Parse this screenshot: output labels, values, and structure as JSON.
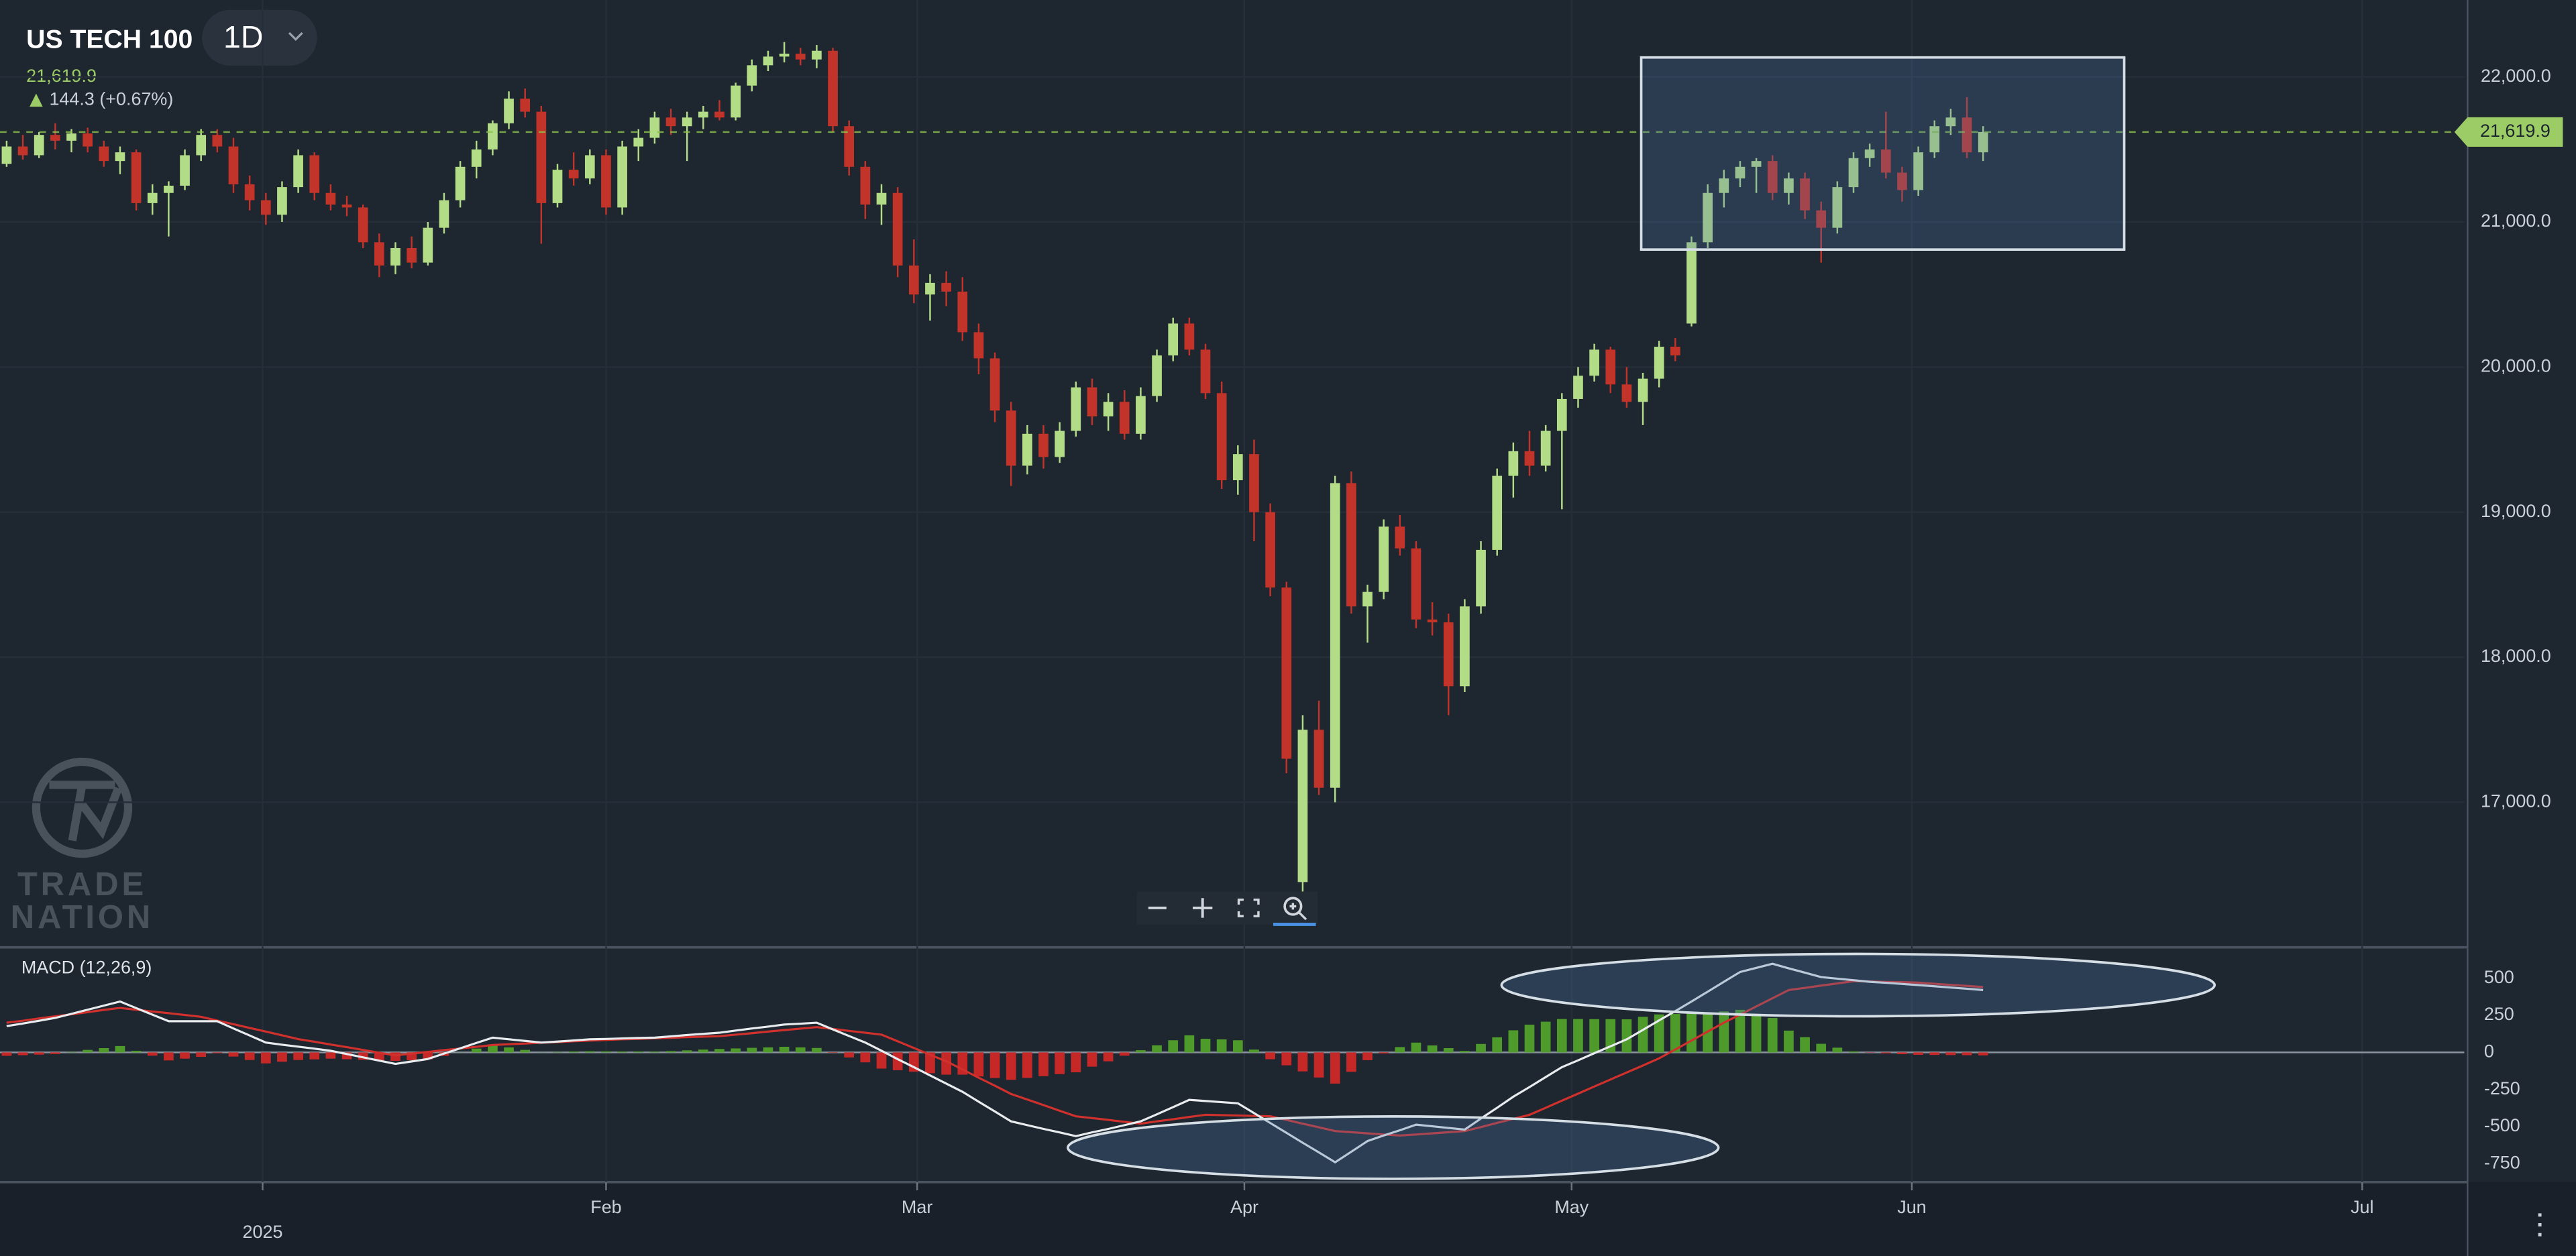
{
  "header": {
    "symbol": "US TECH 100",
    "interval": "1D",
    "change": "144.3 (+0.67%)"
  },
  "watermark": [
    "TRADE",
    "NATION"
  ],
  "chart_data": {
    "type": "candlestick",
    "last_price": {
      "value": 21619.9,
      "label": "21,619.9"
    },
    "up_color": "#b3dc86",
    "down_color": "#c2332a",
    "xlim": [
      -0.41,
      151.7
    ],
    "xticks": [
      {
        "value": 15.8,
        "label": "2025"
      },
      {
        "value": 37,
        "label": "Feb"
      },
      {
        "value": 56.2,
        "label": "Mar"
      },
      {
        "value": 76.4,
        "label": "Apr"
      },
      {
        "value": 96.6,
        "label": "May"
      },
      {
        "value": 117.6,
        "label": "Jun"
      },
      {
        "value": 145.4,
        "label": "Jul"
      }
    ],
    "ylim": [
      16000,
      22530
    ],
    "yticks": [
      {
        "value": 17000,
        "label": "17,000.0"
      },
      {
        "value": 18000,
        "label": "18,000.0"
      },
      {
        "value": 19000,
        "label": "19,000.0"
      },
      {
        "value": 20000,
        "label": "20,000.0"
      },
      {
        "value": 21000,
        "label": "21,000.0"
      },
      {
        "value": 22000,
        "label": "22,000.0"
      }
    ],
    "ohlc": [
      [
        21400,
        21560,
        21380,
        21520
      ],
      [
        21520,
        21600,
        21430,
        21460
      ],
      [
        21460,
        21620,
        21440,
        21600
      ],
      [
        21600,
        21680,
        21500,
        21560
      ],
      [
        21560,
        21640,
        21480,
        21610
      ],
      [
        21610,
        21650,
        21480,
        21520
      ],
      [
        21520,
        21560,
        21380,
        21420
      ],
      [
        21420,
        21520,
        21330,
        21480
      ],
      [
        21480,
        21500,
        21080,
        21130
      ],
      [
        21130,
        21260,
        21050,
        21200
      ],
      [
        21200,
        21280,
        20900,
        21250
      ],
      [
        21250,
        21500,
        21220,
        21460
      ],
      [
        21460,
        21640,
        21420,
        21600
      ],
      [
        21600,
        21640,
        21480,
        21520
      ],
      [
        21520,
        21580,
        21200,
        21260
      ],
      [
        21260,
        21320,
        21080,
        21150
      ],
      [
        21150,
        21200,
        20980,
        21050
      ],
      [
        21050,
        21280,
        21000,
        21240
      ],
      [
        21240,
        21500,
        21200,
        21460
      ],
      [
        21460,
        21480,
        21150,
        21200
      ],
      [
        21200,
        21260,
        21080,
        21120
      ],
      [
        21120,
        21180,
        21040,
        21100
      ],
      [
        21100,
        21120,
        20820,
        20860
      ],
      [
        20860,
        20920,
        20620,
        20700
      ],
      [
        20700,
        20860,
        20640,
        20820
      ],
      [
        20820,
        20900,
        20680,
        20720
      ],
      [
        20720,
        21000,
        20700,
        20960
      ],
      [
        20960,
        21200,
        20920,
        21150
      ],
      [
        21150,
        21420,
        21100,
        21380
      ],
      [
        21380,
        21560,
        21300,
        21500
      ],
      [
        21500,
        21700,
        21460,
        21680
      ],
      [
        21680,
        21900,
        21640,
        21850
      ],
      [
        21850,
        21920,
        21720,
        21760
      ],
      [
        21760,
        21800,
        20850,
        21130
      ],
      [
        21130,
        21400,
        21100,
        21360
      ],
      [
        21360,
        21480,
        21250,
        21300
      ],
      [
        21300,
        21500,
        21260,
        21460
      ],
      [
        21460,
        21500,
        21050,
        21100
      ],
      [
        21100,
        21560,
        21050,
        21520
      ],
      [
        21520,
        21640,
        21420,
        21580
      ],
      [
        21580,
        21760,
        21540,
        21720
      ],
      [
        21720,
        21780,
        21600,
        21660
      ],
      [
        21660,
        21760,
        21420,
        21720
      ],
      [
        21720,
        21800,
        21640,
        21760
      ],
      [
        21760,
        21840,
        21700,
        21720
      ],
      [
        21720,
        21960,
        21700,
        21940
      ],
      [
        21940,
        22120,
        21900,
        22080
      ],
      [
        22080,
        22180,
        22040,
        22140
      ],
      [
        22140,
        22240,
        22100,
        22160
      ],
      [
        22160,
        22200,
        22080,
        22120
      ],
      [
        22120,
        22220,
        22060,
        22180
      ],
      [
        22180,
        22200,
        21620,
        21660
      ],
      [
        21660,
        21700,
        21320,
        21380
      ],
      [
        21380,
        21420,
        21020,
        21120
      ],
      [
        21120,
        21260,
        20980,
        21200
      ],
      [
        21200,
        21240,
        20620,
        20700
      ],
      [
        20700,
        20880,
        20440,
        20500
      ],
      [
        20500,
        20640,
        20320,
        20580
      ],
      [
        20580,
        20660,
        20420,
        20520
      ],
      [
        20520,
        20620,
        20180,
        20240
      ],
      [
        20240,
        20300,
        19950,
        20060
      ],
      [
        20060,
        20100,
        19620,
        19700
      ],
      [
        19700,
        19760,
        19180,
        19320
      ],
      [
        19320,
        19600,
        19260,
        19540
      ],
      [
        19540,
        19600,
        19300,
        19380
      ],
      [
        19380,
        19620,
        19340,
        19560
      ],
      [
        19560,
        19900,
        19520,
        19860
      ],
      [
        19860,
        19920,
        19600,
        19660
      ],
      [
        19660,
        19820,
        19560,
        19760
      ],
      [
        19760,
        19840,
        19500,
        19540
      ],
      [
        19540,
        19860,
        19500,
        19800
      ],
      [
        19800,
        20120,
        19760,
        20080
      ],
      [
        20080,
        20340,
        20040,
        20300
      ],
      [
        20300,
        20340,
        20080,
        20120
      ],
      [
        20120,
        20160,
        19780,
        19820
      ],
      [
        19820,
        19900,
        19160,
        19220
      ],
      [
        19220,
        19460,
        19120,
        19400
      ],
      [
        19400,
        19500,
        18800,
        19000
      ],
      [
        19000,
        19060,
        18420,
        18480
      ],
      [
        18480,
        18520,
        17200,
        17300
      ],
      [
        16450,
        17600,
        16350,
        17500
      ],
      [
        17500,
        17700,
        17050,
        17100
      ],
      [
        17100,
        19250,
        17000,
        19200
      ],
      [
        19200,
        19280,
        18300,
        18350
      ],
      [
        18350,
        18500,
        18100,
        18450
      ],
      [
        18450,
        18950,
        18400,
        18900
      ],
      [
        18900,
        18980,
        18700,
        18750
      ],
      [
        18750,
        18800,
        18200,
        18260
      ],
      [
        18260,
        18380,
        18150,
        18240
      ],
      [
        18240,
        18300,
        17600,
        17800
      ],
      [
        17800,
        18400,
        17760,
        18350
      ],
      [
        18350,
        18800,
        18300,
        18740
      ],
      [
        18740,
        19300,
        18700,
        19250
      ],
      [
        19250,
        19480,
        19100,
        19420
      ],
      [
        19420,
        19560,
        19250,
        19320
      ],
      [
        19320,
        19600,
        19280,
        19560
      ],
      [
        19560,
        19820,
        19020,
        19780
      ],
      [
        19780,
        20000,
        19720,
        19940
      ],
      [
        19940,
        20160,
        19900,
        20120
      ],
      [
        20120,
        20140,
        19820,
        19880
      ],
      [
        19880,
        20000,
        19720,
        19760
      ],
      [
        19760,
        19960,
        19600,
        19920
      ],
      [
        19920,
        20180,
        19860,
        20140
      ],
      [
        20140,
        20200,
        20040,
        20080
      ],
      [
        20300,
        20900,
        20280,
        20860
      ],
      [
        20860,
        21260,
        20820,
        21200
      ],
      [
        21200,
        21360,
        21100,
        21300
      ],
      [
        21300,
        21420,
        21240,
        21380
      ],
      [
        21380,
        21440,
        21200,
        21420
      ],
      [
        21420,
        21460,
        21150,
        21200
      ],
      [
        21200,
        21340,
        21120,
        21300
      ],
      [
        21300,
        21340,
        21020,
        21080
      ],
      [
        21080,
        21140,
        20720,
        20960
      ],
      [
        20960,
        21280,
        20920,
        21240
      ],
      [
        21240,
        21480,
        21200,
        21440
      ],
      [
        21440,
        21540,
        21380,
        21500
      ],
      [
        21500,
        21760,
        21300,
        21340
      ],
      [
        21340,
        21380,
        21140,
        21220
      ],
      [
        21220,
        21520,
        21180,
        21480
      ],
      [
        21480,
        21700,
        21440,
        21660
      ],
      [
        21660,
        21780,
        21600,
        21720
      ],
      [
        21720,
        21860,
        21440,
        21480
      ],
      [
        21480,
        21660,
        21420,
        21619.9
      ]
    ],
    "macd": {
      "title": "MACD (12,26,9)",
      "ylim": [
        -874,
        697
      ],
      "yticks": [
        -750,
        -500,
        -250,
        0,
        250,
        500
      ],
      "macd_color": "#e8ecef",
      "signal_color": "#d0312d",
      "hist_up_color": "#4e9a2a",
      "hist_down_color": "#c62828",
      "macd": [
        177,
        195,
        214,
        232,
        260,
        288,
        315,
        343,
        299,
        254,
        210,
        210,
        210,
        210,
        162,
        114,
        66,
        52,
        39,
        25,
        11,
        -11,
        -33,
        -55,
        -77,
        -61,
        -44,
        -8,
        28,
        64,
        100,
        89,
        77,
        66,
        73,
        81,
        88,
        91,
        94,
        97,
        100,
        108,
        117,
        125,
        133,
        147,
        161,
        174,
        188,
        194,
        200,
        155,
        111,
        66,
        11,
        -45,
        -100,
        -155,
        -210,
        -265,
        -332,
        -398,
        -465,
        -490,
        -515,
        -539,
        -564,
        -539,
        -515,
        -490,
        -465,
        -417,
        -368,
        -320,
        -328,
        -335,
        -343,
        -409,
        -476,
        -542,
        -608,
        -674,
        -740,
        -669,
        -597,
        -560,
        -524,
        -487,
        -498,
        -509,
        -520,
        -446,
        -373,
        -299,
        -233,
        -166,
        -100,
        -53,
        -6,
        41,
        88,
        152,
        216,
        279,
        343,
        409,
        476,
        542,
        570,
        597,
        567,
        538,
        508,
        497,
        487,
        476,
        469,
        461,
        454,
        446,
        437,
        429,
        420
      ],
      "signal": [
        200,
        214,
        229,
        243,
        257,
        271,
        286,
        300,
        288,
        276,
        264,
        252,
        240,
        215,
        190,
        165,
        140,
        115,
        90,
        72,
        53,
        35,
        17,
        -2,
        -20,
        -8,
        3,
        15,
        27,
        38,
        50,
        55,
        60,
        65,
        70,
        75,
        80,
        84,
        88,
        91,
        95,
        99,
        103,
        106,
        110,
        120,
        130,
        140,
        150,
        160,
        170,
        158,
        145,
        133,
        120,
        75,
        30,
        -15,
        -60,
        -115,
        -170,
        -225,
        -280,
        -318,
        -355,
        -393,
        -430,
        -443,
        -455,
        -468,
        -480,
        -465,
        -450,
        -435,
        -420,
        -423,
        -425,
        -428,
        -430,
        -455,
        -480,
        -505,
        -530,
        -538,
        -545,
        -553,
        -560,
        -553,
        -545,
        -538,
        -530,
        -503,
        -475,
        -448,
        -420,
        -373,
        -325,
        -278,
        -230,
        -183,
        -135,
        -88,
        -40,
        20,
        80,
        140,
        200,
        255,
        310,
        365,
        420,
        435,
        450,
        465,
        480,
        478,
        475,
        473,
        470,
        463,
        455,
        448,
        440
      ],
      "histogram": [
        -23,
        -19,
        -15,
        -11,
        3,
        17,
        29,
        43,
        11,
        -22,
        -54,
        -42,
        -30,
        -5,
        -28,
        -51,
        -74,
        -63,
        -51,
        -47,
        -42,
        -46,
        -50,
        -53,
        -57,
        -53,
        -47,
        -23,
        1,
        26,
        50,
        34,
        17,
        1,
        3,
        6,
        8,
        7,
        6,
        6,
        5,
        9,
        14,
        19,
        23,
        27,
        31,
        34,
        38,
        34,
        30,
        -3,
        -34,
        -67,
        -109,
        -120,
        -130,
        -140,
        -150,
        -150,
        -162,
        -173,
        -185,
        -172,
        -160,
        -146,
        -134,
        -96,
        -60,
        -22,
        15,
        48,
        82,
        115,
        92,
        88,
        82,
        19,
        -46,
        -87,
        -128,
        -169,
        -210,
        -131,
        -52,
        -7,
        36,
        66,
        47,
        29,
        10,
        57,
        102,
        149,
        187,
        207,
        225,
        225,
        224,
        224,
        223,
        240,
        256,
        259,
        263,
        269,
        276,
        287,
        260,
        232,
        147,
        103,
        58,
        32,
        7,
        -2,
        -6,
        -12,
        -16,
        -17,
        -18,
        -19,
        -20
      ]
    }
  }
}
